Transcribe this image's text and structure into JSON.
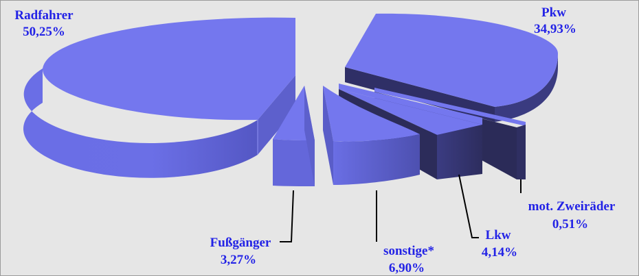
{
  "chart_data": {
    "type": "pie",
    "style": "3d-exploded",
    "slices": [
      {
        "label": "Radfahrer",
        "value": 50.25,
        "value_label": "50,25%"
      },
      {
        "label": "Pkw",
        "value": 34.93,
        "value_label": "34,93%"
      },
      {
        "label": "mot. Zweiräder",
        "value": 0.51,
        "value_label": "0,51%"
      },
      {
        "label": "Lkw",
        "value": 4.14,
        "value_label": "4,14%"
      },
      {
        "label": "sonstige*",
        "value": 6.9,
        "value_label": "6,90%"
      },
      {
        "label": "Fußgänger",
        "value": 3.27,
        "value_label": "3,27%"
      }
    ],
    "legend": "none"
  },
  "colors": {
    "background": "#e6e6e6",
    "frame": "#9a9a9a",
    "label_text": "#2323e6",
    "slice_top": "#7477ee",
    "slice_side_light": "#6063d6",
    "slice_side_dark": "#2f2f64",
    "leader_line": "#000000"
  }
}
